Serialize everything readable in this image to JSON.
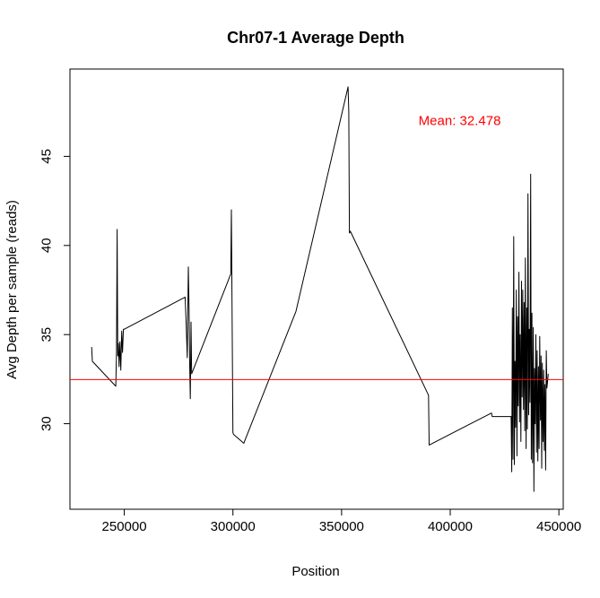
{
  "chart_data": {
    "type": "line",
    "title": "Chr07-1 Average Depth",
    "xlabel": "Position",
    "ylabel": "Avg Depth per sample (reads)",
    "xlim": [
      225000,
      452000
    ],
    "ylim": [
      25.2,
      49.9
    ],
    "x_ticks": [
      250000,
      300000,
      350000,
      400000,
      450000
    ],
    "x_tick_labels": [
      "250000",
      "300000",
      "350000",
      "400000",
      "450000"
    ],
    "y_ticks": [
      30,
      35,
      40,
      45
    ],
    "y_tick_labels": [
      "30",
      "35",
      "40",
      "45"
    ],
    "grid": false,
    "annotation": {
      "text": "Mean: 32.478",
      "x": 380000,
      "y": 47
    },
    "mean_line": {
      "y": 32.478,
      "color": "#ff0000"
    },
    "line_color": "#000000",
    "series": [
      {
        "x": [
          235000,
          235300,
          246100,
          246400,
          246700,
          247000,
          247300,
          247600,
          248000,
          248400,
          248800,
          249200,
          249600,
          250000,
          278000,
          278500,
          279000,
          279500,
          279800,
          280100,
          280400,
          280700,
          281000,
          299000,
          299300,
          299600,
          300000,
          300300,
          305000,
          329000,
          353000,
          353300,
          353600,
          354000,
          390000,
          390300,
          419000,
          419300,
          428000,
          428300,
          428600,
          428900,
          429200,
          429500,
          429800,
          430100,
          430400,
          430700,
          431000,
          431300,
          431600,
          431900,
          432200,
          432500,
          432800,
          433100,
          433400,
          433700,
          434000,
          434300,
          434600,
          434900,
          435200,
          435500,
          435800,
          436100,
          436400,
          436700,
          437000,
          437300,
          437600,
          437900,
          438200,
          438500,
          438800,
          439100,
          439400,
          439700,
          440000,
          440300,
          440600,
          440900,
          441200,
          441500,
          441800,
          442100,
          442400,
          442700,
          443000,
          443300,
          443600,
          443900,
          444200,
          444500,
          444800,
          445100
        ],
        "y": [
          34.3,
          33.5,
          32.1,
          34.0,
          40.9,
          33.8,
          34.5,
          33.2,
          34.6,
          33.0,
          35.2,
          34.0,
          35.3,
          35.3,
          37.1,
          35.6,
          33.7,
          38.8,
          36.5,
          33.3,
          31.4,
          35.7,
          32.8,
          38.4,
          42.0,
          36.8,
          29.5,
          29.4,
          28.9,
          36.3,
          48.9,
          47.5,
          40.7,
          40.8,
          31.6,
          28.8,
          30.6,
          30.4,
          30.4,
          27.3,
          36.5,
          28.0,
          40.5,
          27.7,
          33.5,
          29.8,
          37.5,
          28.2,
          36.0,
          31.0,
          38.5,
          30.1,
          35.0,
          29.0,
          38.0,
          31.5,
          37.5,
          30.8,
          36.8,
          29.6,
          39.3,
          28.6,
          36.5,
          29.7,
          42.9,
          30.5,
          35.3,
          31.2,
          44.0,
          28.0,
          36.2,
          27.8,
          35.4,
          26.2,
          33.1,
          30.0,
          35.0,
          28.4,
          34.1,
          27.9,
          33.2,
          28.6,
          34.9,
          30.2,
          33.8,
          27.5,
          33.4,
          29.0,
          33.0,
          28.5,
          32.2,
          27.4,
          34.1,
          32.0,
          32.4,
          32.8
        ]
      }
    ]
  }
}
